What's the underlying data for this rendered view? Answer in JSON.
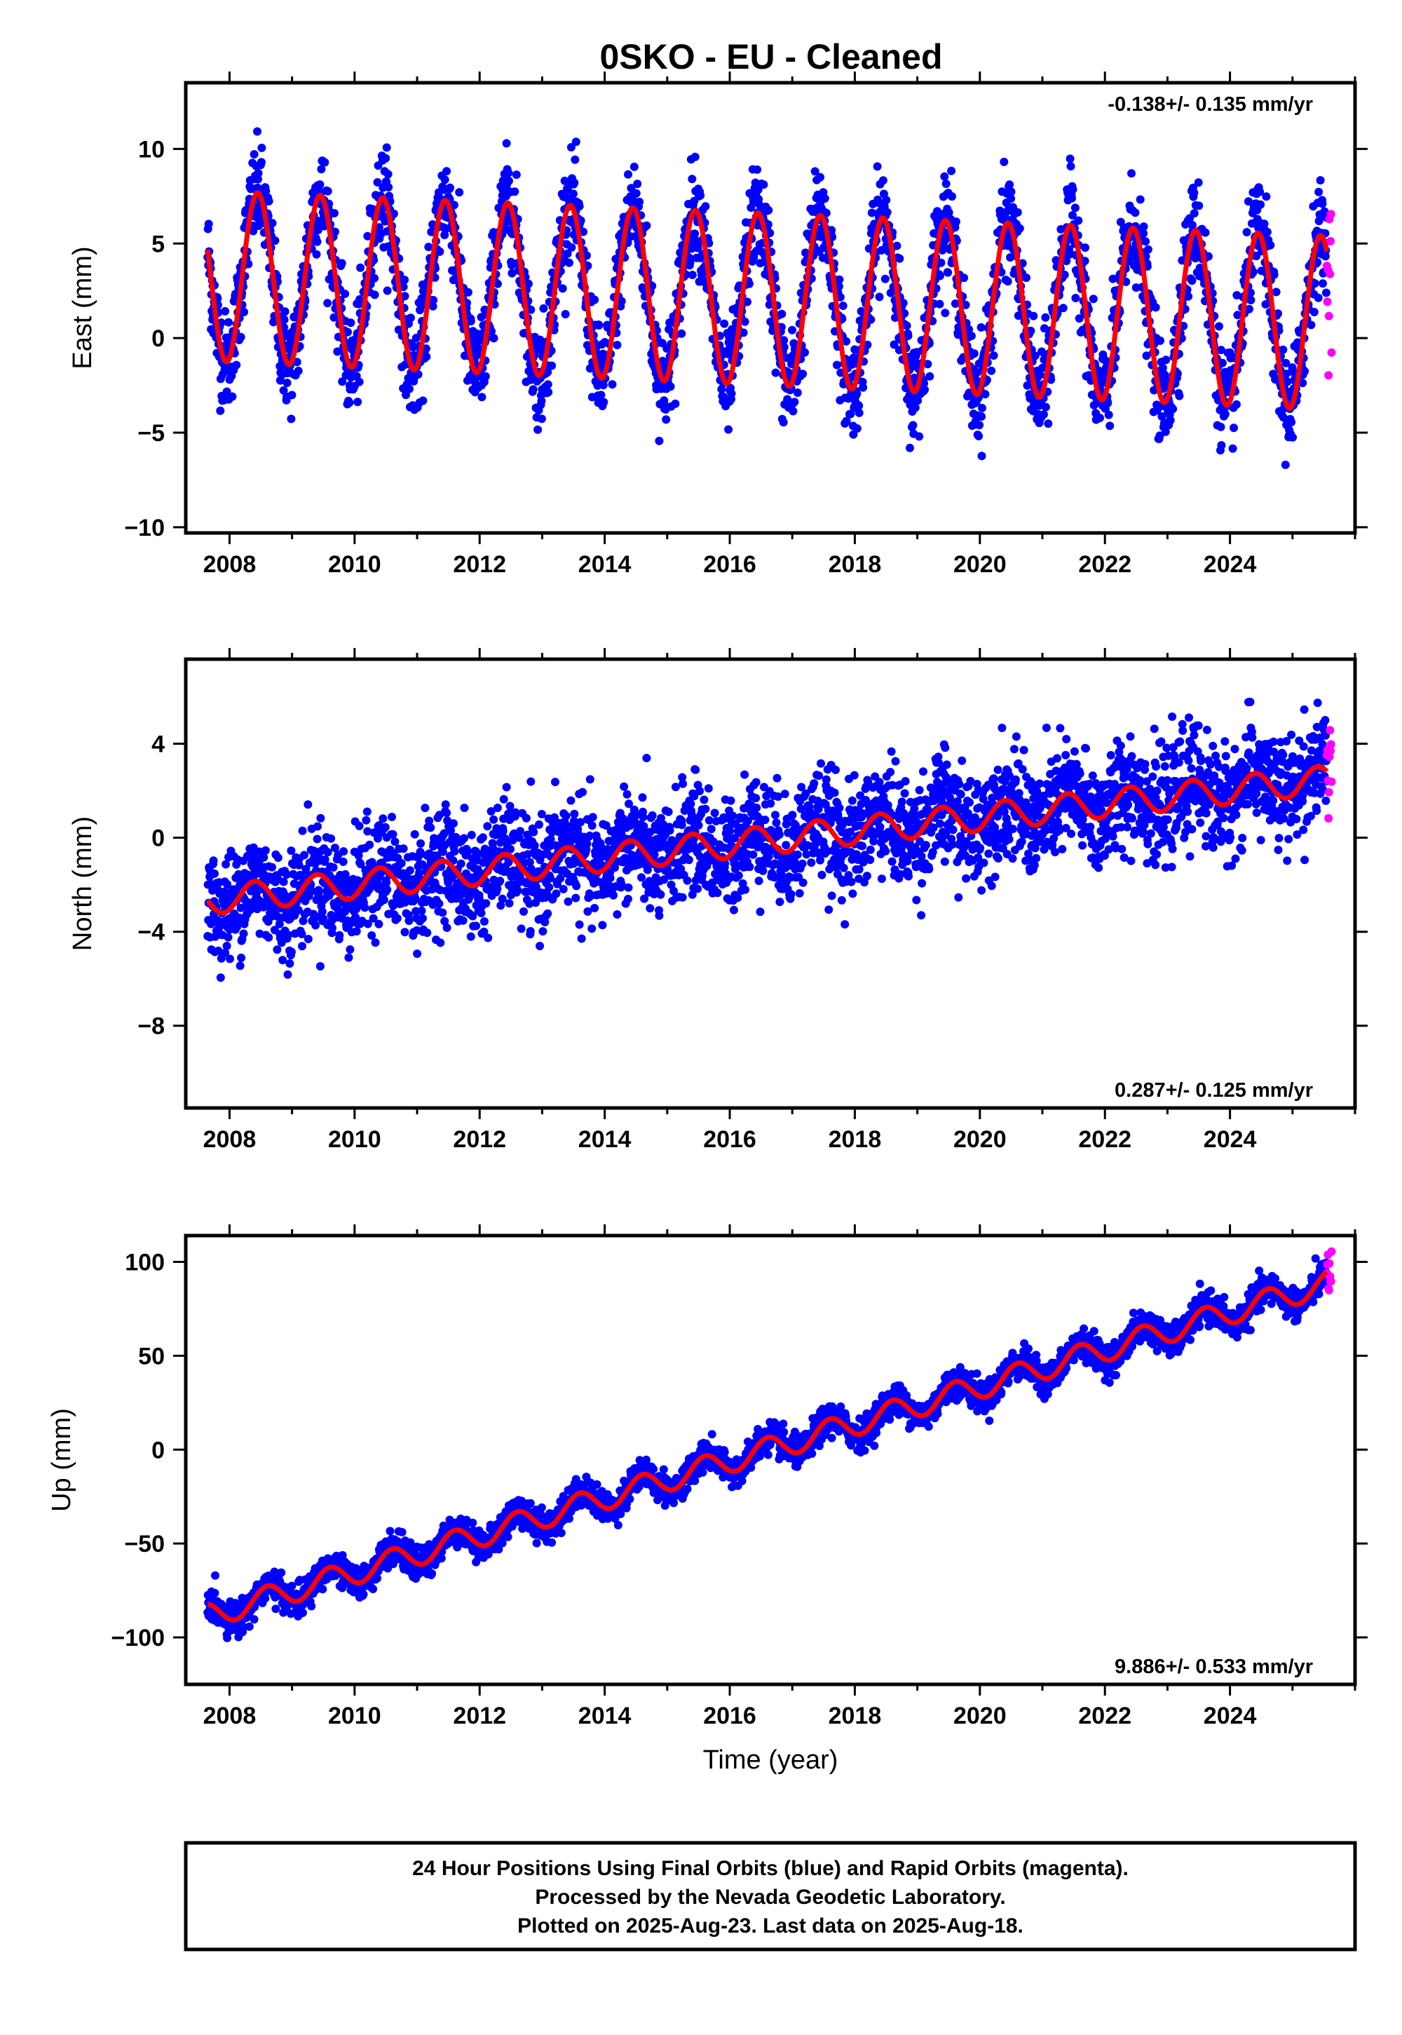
{
  "title": "0SKO  - EU - Cleaned",
  "footer": {
    "line1": "24 Hour Positions Using Final Orbits (blue) and Rapid Orbits (magenta).",
    "line2": "Processed by the Nevada Geodetic Laboratory.",
    "line3": "Plotted on 2025-Aug-23. Last data on 2025-Aug-18."
  },
  "colors": {
    "final": "#0000ff",
    "rapid": "#ff00ff",
    "model": "#ff0000",
    "frame": "#000000"
  },
  "chart_data": [
    {
      "type": "scatter",
      "component": "east",
      "ylabel": "East (mm)",
      "xlabel": "",
      "rate": "-0.138+/- 0.135 mm/yr",
      "rate_position": "top-right",
      "xlim": [
        2007.3,
        2026.0
      ],
      "ylim": [
        -10.3,
        13.5
      ],
      "xticks": [
        2008,
        2010,
        2012,
        2014,
        2016,
        2018,
        2020,
        2022,
        2024
      ],
      "yticks": [
        -10,
        -5,
        0,
        5,
        10
      ],
      "data_start": 2007.65,
      "data_end": 2025.55,
      "rapid_start": 2025.55,
      "rapid_end": 2025.63,
      "model": {
        "offset": 2.05,
        "trend": -0.138,
        "amplitude": 4.5,
        "amplitude_end": 4.6,
        "peak_phase": 0.45,
        "ref_year": 2016.6
      },
      "scatter_sd": 1.3,
      "grid": false
    },
    {
      "type": "scatter",
      "component": "north",
      "ylabel": "North (mm)",
      "xlabel": "",
      "rate": "0.287+/- 0.125 mm/yr",
      "rate_position": "bottom-right",
      "xlim": [
        2007.3,
        2026.0
      ],
      "ylim": [
        -11.5,
        7.6
      ],
      "xticks": [
        2008,
        2010,
        2012,
        2014,
        2016,
        2018,
        2020,
        2022,
        2024
      ],
      "yticks": [
        -8,
        -4,
        0,
        4
      ],
      "data_start": 2007.65,
      "data_end": 2025.55,
      "rapid_start": 2025.55,
      "rapid_end": 2025.63,
      "model": {
        "offset": -0.1,
        "trend": 0.287,
        "amplitude": 0.6,
        "amplitude_end": 0.6,
        "peak_phase": 0.4,
        "ref_year": 2016.6
      },
      "scatter_sd": 1.15,
      "grid": false
    },
    {
      "type": "scatter",
      "component": "up",
      "ylabel": "Up (mm)",
      "xlabel": "Time (year)",
      "rate": "9.886+/- 0.533 mm/yr",
      "rate_position": "bottom-right",
      "xlim": [
        2007.3,
        2026.0
      ],
      "ylim": [
        -125,
        114
      ],
      "xticks": [
        2008,
        2010,
        2012,
        2014,
        2016,
        2018,
        2020,
        2022,
        2024
      ],
      "yticks": [
        -100,
        -50,
        0,
        50,
        100
      ],
      "data_start": 2007.65,
      "data_end": 2025.55,
      "rapid_start": 2025.55,
      "rapid_end": 2025.63,
      "model": {
        "offset": 0.0,
        "trend": 9.886,
        "amplitude": 6.5,
        "amplitude_end": 6.5,
        "peak_phase": 0.6,
        "ref_year": 2016.6
      },
      "scatter_sd": 4.0,
      "grid": false
    }
  ]
}
